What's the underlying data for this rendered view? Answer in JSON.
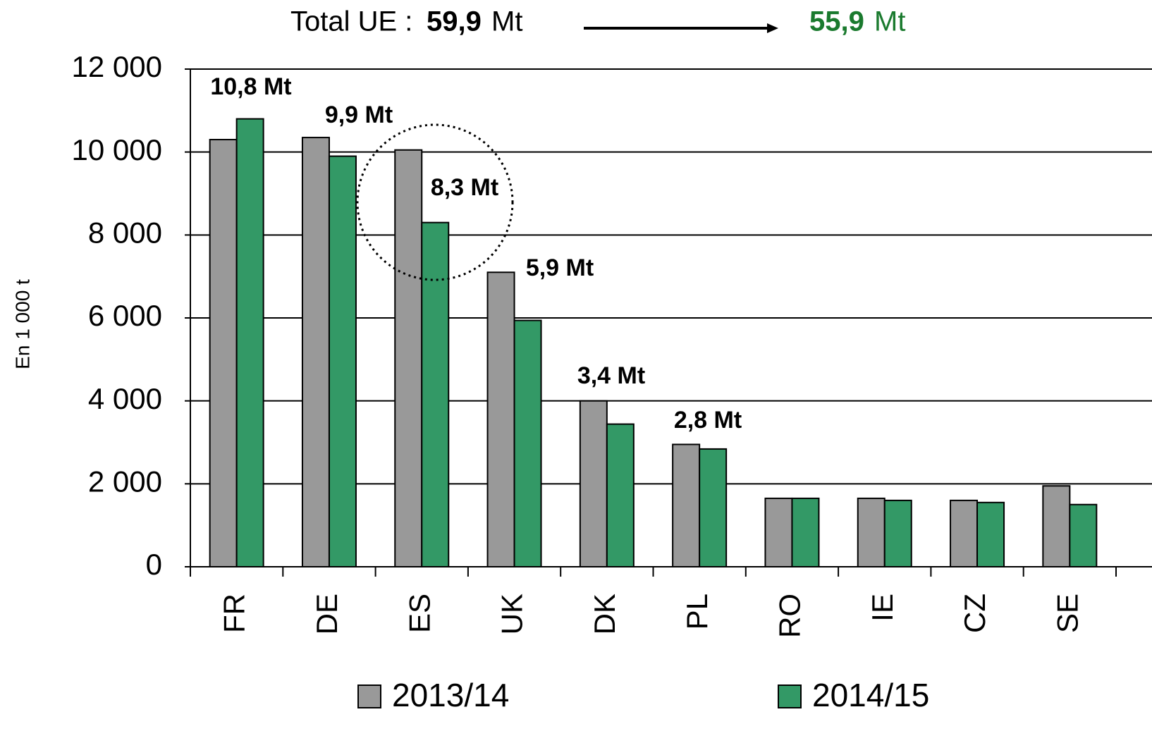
{
  "chart_data": {
    "type": "bar",
    "header": {
      "label": "Total UE :",
      "before": "59,9",
      "unit": "Mt",
      "after": "55,9"
    },
    "y_label": "En 1 000 t",
    "categories": [
      "FR",
      "DE",
      "ES",
      "UK",
      "DK",
      "PL",
      "RO",
      "IE",
      "CZ",
      "SE"
    ],
    "series": [
      {
        "name": "2013/14",
        "color": "#999999",
        "values": [
          10300,
          10350,
          10050,
          7100,
          4000,
          2950,
          1650,
          1650,
          1600,
          1950
        ]
      },
      {
        "name": "2014/15",
        "color": "#339966",
        "values": [
          10800,
          9900,
          8300,
          5940,
          3440,
          2840,
          1650,
          1600,
          1550,
          1500
        ],
        "value_labels": [
          "10,8 Mt",
          "9,9 Mt",
          "8,3 Mt",
          "5,9 Mt",
          "3,4 Mt",
          "2,8 Mt",
          null,
          null,
          null,
          null
        ]
      }
    ],
    "ylim": [
      0,
      12000
    ],
    "yticks": [
      0,
      {
        "value": 2000,
        "label": "2 000"
      },
      {
        "value": 4000,
        "label": "4 000"
      },
      {
        "value": 6000,
        "label": "6 000"
      },
      {
        "value": 8000,
        "label": "8 000"
      },
      {
        "value": 10000,
        "label": "10 000"
      },
      {
        "value": 12000,
        "label": "12 000"
      }
    ],
    "grid": true
  }
}
